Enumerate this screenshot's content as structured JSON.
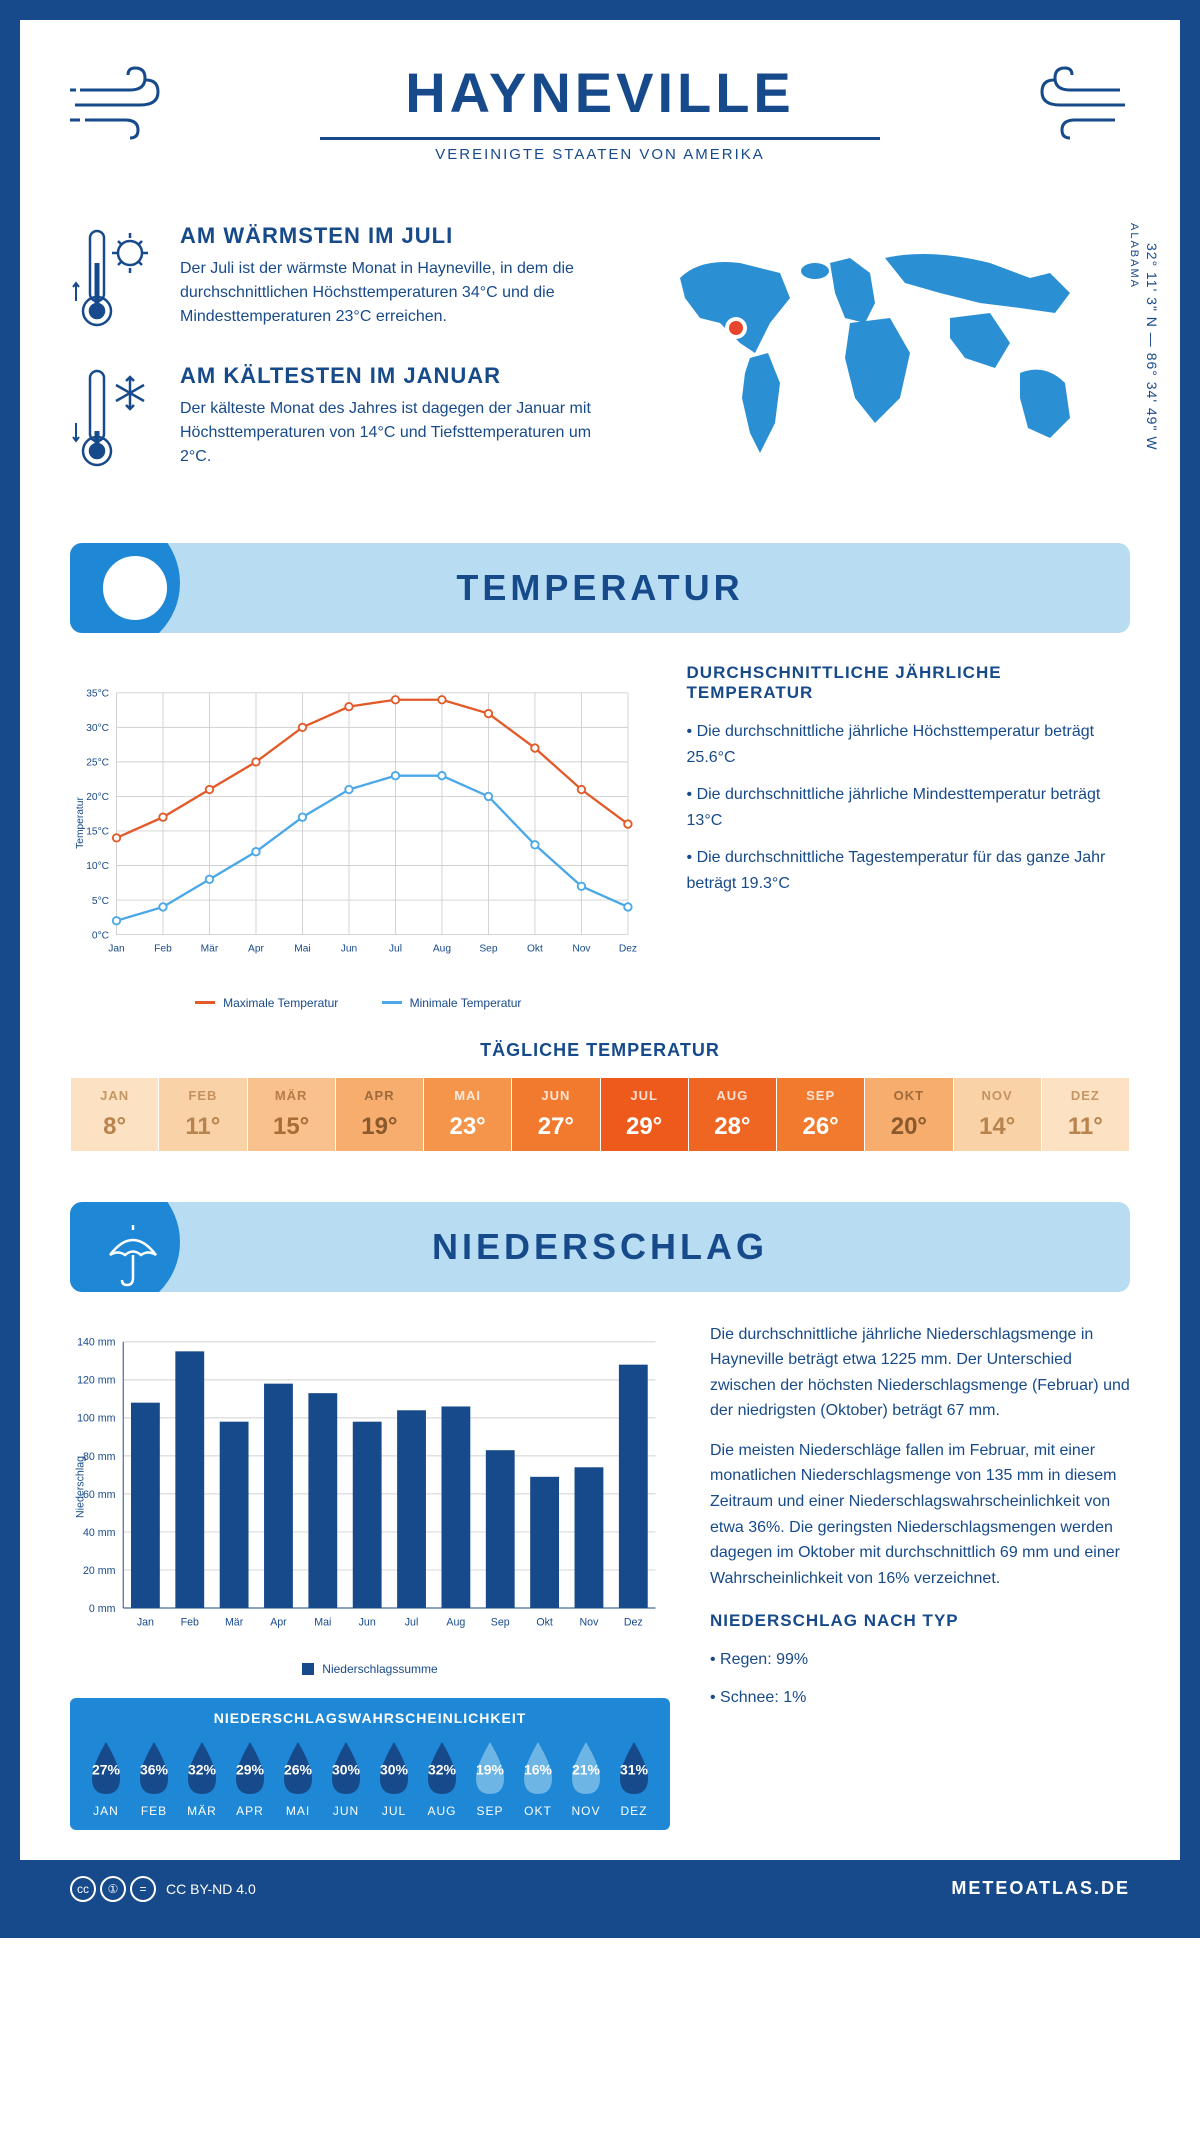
{
  "header": {
    "city": "HAYNEVILLE",
    "country": "VEREINIGTE STAATEN VON AMERIKA"
  },
  "coords": "32° 11' 3\" N — 86° 34' 49\" W",
  "state": "ALABAMA",
  "warmest": {
    "title": "AM WÄRMSTEN IM JULI",
    "text": "Der Juli ist der wärmste Monat in Hayneville, in dem die durchschnittlichen Höchsttemperaturen 34°C und die Mindesttemperaturen 23°C erreichen."
  },
  "coldest": {
    "title": "AM KÄLTESTEN IM JANUAR",
    "text": "Der kälteste Monat des Jahres ist dagegen der Januar mit Höchsttemperaturen von 14°C und Tiefsttemperaturen um 2°C."
  },
  "tempSection": {
    "title": "TEMPERATUR"
  },
  "tempChart": {
    "type": "line",
    "months": [
      "Jan",
      "Feb",
      "Mär",
      "Apr",
      "Mai",
      "Jun",
      "Jul",
      "Aug",
      "Sep",
      "Okt",
      "Nov",
      "Dez"
    ],
    "max": {
      "label": "Maximale Temperatur",
      "color": "#e35a2a",
      "values": [
        14,
        17,
        21,
        25,
        30,
        33,
        34,
        34,
        32,
        27,
        21,
        16
      ]
    },
    "min": {
      "label": "Minimale Temperatur",
      "color": "#4aa8e8",
      "values": [
        2,
        4,
        8,
        12,
        17,
        21,
        23,
        23,
        20,
        13,
        7,
        4
      ]
    },
    "ylabel": "Temperatur",
    "ylim": [
      0,
      35
    ],
    "ytick": 5,
    "grid_color": "#d0d0d0",
    "bg": "#ffffff"
  },
  "tempStats": {
    "title": "DURCHSCHNITTLICHE JÄHRLICHE TEMPERATUR",
    "items": [
      "Die durchschnittliche jährliche Höchsttemperatur beträgt 25.6°C",
      "Die durchschnittliche jährliche Mindesttemperatur beträgt 13°C",
      "Die durchschnittliche Tagestemperatur für das ganze Jahr beträgt 19.3°C"
    ]
  },
  "dailyTemp": {
    "title": "TÄGLICHE TEMPERATUR",
    "months": [
      "JAN",
      "FEB",
      "MÄR",
      "APR",
      "MAI",
      "JUN",
      "JUL",
      "AUG",
      "SEP",
      "OKT",
      "NOV",
      "DEZ"
    ],
    "values": [
      "8°",
      "11°",
      "15°",
      "19°",
      "23°",
      "27°",
      "29°",
      "28°",
      "26°",
      "20°",
      "14°",
      "11°"
    ],
    "colors": [
      "#fce1c2",
      "#fad2a8",
      "#f9c18d",
      "#f7ad6d",
      "#f5954c",
      "#f27a2e",
      "#ee5a1c",
      "#ef6622",
      "#f27a2e",
      "#f7ad6d",
      "#fad2a8",
      "#fce1c2"
    ],
    "textColors": [
      "#b8834d",
      "#b8834d",
      "#a86c37",
      "#8a5a2d",
      "#fff",
      "#fff",
      "#fff",
      "#fff",
      "#fff",
      "#8a5a2d",
      "#b8834d",
      "#b8834d"
    ]
  },
  "precipSection": {
    "title": "NIEDERSCHLAG"
  },
  "precipChart": {
    "type": "bar",
    "months": [
      "Jan",
      "Feb",
      "Mär",
      "Apr",
      "Mai",
      "Jun",
      "Jul",
      "Aug",
      "Sep",
      "Okt",
      "Nov",
      "Dez"
    ],
    "values": [
      108,
      135,
      98,
      118,
      113,
      98,
      104,
      106,
      83,
      69,
      74,
      128
    ],
    "bar_color": "#174a8a",
    "ylabel": "Niederschlag",
    "ylim": [
      0,
      140
    ],
    "ytick": 20,
    "legend": "Niederschlagssumme",
    "grid_color": "#d0d0d0"
  },
  "precipText": {
    "p1": "Die durchschnittliche jährliche Niederschlagsmenge in Hayneville beträgt etwa 1225 mm. Der Unterschied zwischen der höchsten Niederschlagsmenge (Februar) und der niedrigsten (Oktober) beträgt 67 mm.",
    "p2": "Die meisten Niederschläge fallen im Februar, mit einer monatlichen Niederschlagsmenge von 135 mm in diesem Zeitraum und einer Niederschlagswahrscheinlichkeit von etwa 36%. Die geringsten Niederschlagsmengen werden dagegen im Oktober mit durchschnittlich 69 mm und einer Wahrscheinlichkeit von 16% verzeichnet.",
    "typeTitle": "NIEDERSCHLAG NACH TYP",
    "types": [
      "Regen: 99%",
      "Schnee: 1%"
    ]
  },
  "prob": {
    "title": "NIEDERSCHLAGSWAHRSCHEINLICHKEIT",
    "months": [
      "JAN",
      "FEB",
      "MÄR",
      "APR",
      "MAI",
      "JUN",
      "JUL",
      "AUG",
      "SEP",
      "OKT",
      "NOV",
      "DEZ"
    ],
    "values": [
      "27%",
      "36%",
      "32%",
      "29%",
      "26%",
      "30%",
      "30%",
      "32%",
      "19%",
      "16%",
      "21%",
      "31%"
    ],
    "colors": [
      "#174a8a",
      "#174a8a",
      "#174a8a",
      "#174a8a",
      "#174a8a",
      "#174a8a",
      "#174a8a",
      "#174a8a",
      "#6db5e4",
      "#6db5e4",
      "#6db5e4",
      "#174a8a"
    ]
  },
  "footer": {
    "license": "CC BY-ND 4.0",
    "site": "METEOATLAS.DE"
  },
  "colors": {
    "primary": "#174a8a",
    "light": "#b8dcf2",
    "accent": "#1e88d6",
    "orange": "#e35a2a",
    "skyblue": "#4aa8e8"
  }
}
